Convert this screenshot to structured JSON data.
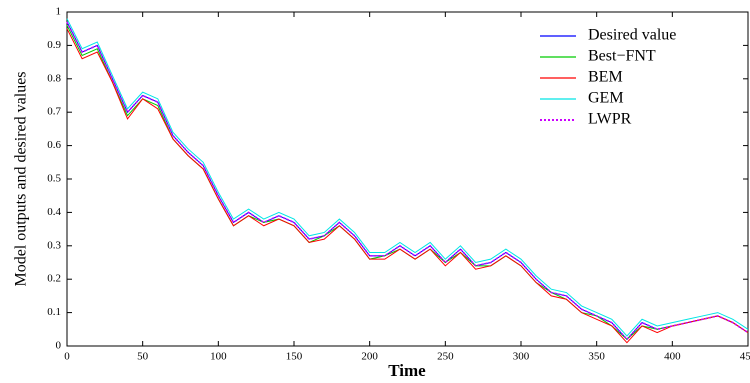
{
  "chart_data": {
    "type": "line",
    "xlabel": "Time",
    "ylabel": "Model outputs and desired values",
    "x": [
      0,
      10,
      20,
      30,
      40,
      50,
      60,
      70,
      80,
      90,
      100,
      110,
      120,
      130,
      140,
      150,
      160,
      170,
      180,
      190,
      200,
      210,
      220,
      230,
      240,
      250,
      260,
      270,
      280,
      290,
      300,
      310,
      320,
      330,
      340,
      350,
      360,
      370,
      380,
      390,
      400,
      410,
      420,
      430,
      440,
      450
    ],
    "series": [
      {
        "name": "Desired value",
        "color": "#0000ff",
        "dash": "solid",
        "values": [
          0.97,
          0.88,
          0.9,
          0.8,
          0.7,
          0.75,
          0.73,
          0.63,
          0.58,
          0.54,
          0.45,
          0.37,
          0.4,
          0.37,
          0.39,
          0.37,
          0.32,
          0.33,
          0.37,
          0.33,
          0.27,
          0.27,
          0.3,
          0.27,
          0.3,
          0.25,
          0.29,
          0.24,
          0.25,
          0.28,
          0.25,
          0.2,
          0.16,
          0.15,
          0.11,
          0.09,
          0.07,
          0.02,
          0.07,
          0.05,
          0.06,
          0.07,
          0.08,
          0.09,
          0.07,
          0.04
        ]
      },
      {
        "name": "Best−FNT",
        "color": "#00cc00",
        "dash": "solid",
        "values": [
          0.96,
          0.87,
          0.89,
          0.79,
          0.69,
          0.74,
          0.72,
          0.62,
          0.57,
          0.53,
          0.44,
          0.36,
          0.39,
          0.37,
          0.38,
          0.36,
          0.31,
          0.33,
          0.36,
          0.32,
          0.26,
          0.27,
          0.29,
          0.26,
          0.29,
          0.25,
          0.28,
          0.24,
          0.24,
          0.27,
          0.24,
          0.19,
          0.16,
          0.14,
          0.1,
          0.09,
          0.06,
          0.02,
          0.06,
          0.05,
          0.06,
          0.07,
          0.08,
          0.09,
          0.07,
          0.04
        ]
      },
      {
        "name": "BEM",
        "color": "#ff0000",
        "dash": "solid",
        "values": [
          0.95,
          0.86,
          0.88,
          0.79,
          0.68,
          0.74,
          0.71,
          0.62,
          0.57,
          0.53,
          0.44,
          0.36,
          0.39,
          0.36,
          0.38,
          0.36,
          0.31,
          0.32,
          0.36,
          0.32,
          0.26,
          0.26,
          0.29,
          0.26,
          0.29,
          0.24,
          0.28,
          0.23,
          0.24,
          0.27,
          0.24,
          0.19,
          0.15,
          0.14,
          0.1,
          0.08,
          0.06,
          0.01,
          0.06,
          0.04,
          0.06,
          0.07,
          0.08,
          0.09,
          0.07,
          0.04
        ]
      },
      {
        "name": "GEM",
        "color": "#00e5e5",
        "dash": "solid",
        "values": [
          0.98,
          0.89,
          0.91,
          0.81,
          0.71,
          0.76,
          0.74,
          0.64,
          0.59,
          0.55,
          0.46,
          0.38,
          0.41,
          0.38,
          0.4,
          0.38,
          0.33,
          0.34,
          0.38,
          0.34,
          0.28,
          0.28,
          0.31,
          0.28,
          0.31,
          0.26,
          0.3,
          0.25,
          0.26,
          0.29,
          0.26,
          0.21,
          0.17,
          0.16,
          0.12,
          0.1,
          0.08,
          0.03,
          0.08,
          0.06,
          0.07,
          0.08,
          0.09,
          0.1,
          0.08,
          0.05
        ]
      },
      {
        "name": "LWPR",
        "color": "#cc00ff",
        "dash": "dotted",
        "values": [
          0.97,
          0.88,
          0.9,
          0.8,
          0.7,
          0.75,
          0.73,
          0.63,
          0.58,
          0.54,
          0.45,
          0.37,
          0.4,
          0.37,
          0.39,
          0.37,
          0.32,
          0.33,
          0.37,
          0.33,
          0.27,
          0.27,
          0.3,
          0.27,
          0.3,
          0.25,
          0.29,
          0.24,
          0.25,
          0.28,
          0.25,
          0.2,
          0.16,
          0.15,
          0.11,
          0.09,
          0.07,
          0.02,
          0.07,
          0.05,
          0.06,
          0.07,
          0.08,
          0.09,
          0.07,
          0.04
        ]
      }
    ],
    "xlim": [
      0,
      450
    ],
    "xticks": [
      0,
      50,
      100,
      150,
      200,
      250,
      300,
      350,
      400,
      450
    ],
    "ylim": [
      0,
      1
    ],
    "yticks": [
      0,
      0.1,
      0.2,
      0.3,
      0.4,
      0.5,
      0.6,
      0.7,
      0.8,
      0.9,
      1
    ],
    "legend": "upper right",
    "grid": false
  }
}
